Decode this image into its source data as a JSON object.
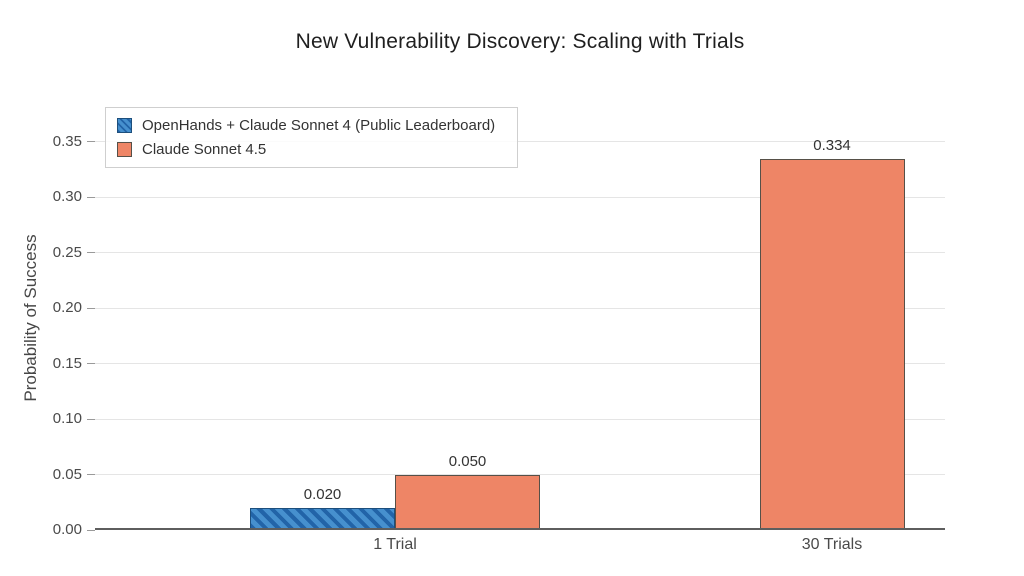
{
  "chart_data": {
    "type": "bar",
    "title": "New Vulnerability Discovery: Scaling with Trials",
    "xlabel": "",
    "ylabel": "Probability of Success",
    "categories": [
      "1 Trial",
      "30 Trials"
    ],
    "series": [
      {
        "name": "OpenHands + Claude Sonnet 4 (Public Leaderboard)",
        "values": [
          0.02,
          null
        ],
        "labels": [
          "0.020",
          null
        ],
        "color": "#4690ce",
        "hatch": "//",
        "hatch_color": "#2264a8",
        "edge_color": "#1d4f7c"
      },
      {
        "name": "Claude Sonnet 4.5",
        "values": [
          0.05,
          0.334
        ],
        "labels": [
          "0.050",
          "0.334"
        ],
        "color": "#ee8566",
        "hatch": null,
        "hatch_color": null,
        "edge_color": "#565048"
      }
    ],
    "yticks": [
      0.0,
      0.05,
      0.1,
      0.15,
      0.2,
      0.25,
      0.3,
      0.35
    ],
    "ytick_labels": [
      "0.00",
      "0.05",
      "0.10",
      "0.15",
      "0.20",
      "0.25",
      "0.30",
      "0.35"
    ],
    "ylim": [
      0,
      0.35
    ],
    "grid": "horizontal",
    "legend_position": "upper left"
  }
}
